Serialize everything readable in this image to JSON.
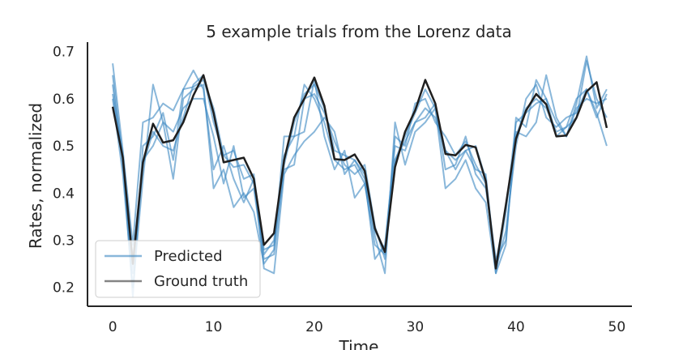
{
  "chart_data": {
    "type": "line",
    "title": "5 example trials from the Lorenz data",
    "xlabel": "Time",
    "ylabel": "Rates, normalized",
    "xlim": [
      -2.5,
      51.5
    ],
    "ylim": [
      0.16,
      0.72
    ],
    "xticks": [
      0,
      10,
      20,
      30,
      40,
      50
    ],
    "yticks": [
      0.2,
      0.3,
      0.4,
      0.5,
      0.6,
      0.7
    ],
    "grid": false,
    "legend_position": "lower-left",
    "legend": [
      "Predicted",
      "Ground truth"
    ],
    "colors": {
      "predicted": "#3a87c2",
      "ground_truth": "#1f1f1f"
    },
    "x": [
      0,
      1,
      2,
      3,
      4,
      5,
      6,
      7,
      8,
      9,
      10,
      11,
      12,
      13,
      14,
      15,
      16,
      17,
      18,
      19,
      20,
      21,
      22,
      23,
      24,
      25,
      26,
      27,
      28,
      29,
      30,
      31,
      32,
      33,
      34,
      35,
      36,
      37,
      38,
      39,
      40,
      41,
      42,
      43,
      44,
      45,
      46,
      47,
      48,
      49
    ],
    "ground_truth": [
      0.583,
      0.475,
      0.25,
      0.465,
      0.547,
      0.507,
      0.512,
      0.55,
      0.607,
      0.65,
      0.57,
      0.465,
      0.47,
      0.475,
      0.43,
      0.29,
      0.315,
      0.47,
      0.56,
      0.6,
      0.645,
      0.585,
      0.472,
      0.47,
      0.482,
      0.447,
      0.325,
      0.275,
      0.455,
      0.53,
      0.575,
      0.64,
      0.59,
      0.483,
      0.48,
      0.502,
      0.497,
      0.425,
      0.24,
      0.375,
      0.515,
      0.575,
      0.61,
      0.588,
      0.52,
      0.522,
      0.56,
      0.615,
      0.635,
      0.538
    ],
    "series": [
      {
        "name": "Predicted",
        "values": [
          0.675,
          0.49,
          0.29,
          0.55,
          0.56,
          0.59,
          0.575,
          0.62,
          0.625,
          0.64,
          0.58,
          0.48,
          0.455,
          0.46,
          0.42,
          0.28,
          0.29,
          0.46,
          0.55,
          0.61,
          0.63,
          0.58,
          0.49,
          0.48,
          0.47,
          0.44,
          0.32,
          0.28,
          0.47,
          0.52,
          0.57,
          0.62,
          0.58,
          0.49,
          0.47,
          0.49,
          0.5,
          0.43,
          0.25,
          0.37,
          0.52,
          0.58,
          0.6,
          0.58,
          0.53,
          0.54,
          0.56,
          0.68,
          0.6,
          0.56
        ]
      },
      {
        "name": "Predicted",
        "values": [
          0.63,
          0.46,
          0.23,
          0.46,
          0.53,
          0.5,
          0.49,
          0.56,
          0.63,
          0.65,
          0.55,
          0.48,
          0.49,
          0.43,
          0.44,
          0.27,
          0.3,
          0.48,
          0.52,
          0.63,
          0.6,
          0.55,
          0.47,
          0.45,
          0.46,
          0.42,
          0.29,
          0.27,
          0.52,
          0.5,
          0.59,
          0.6,
          0.55,
          0.52,
          0.48,
          0.51,
          0.46,
          0.42,
          0.24,
          0.32,
          0.5,
          0.6,
          0.63,
          0.56,
          0.54,
          0.56,
          0.57,
          0.62,
          0.57,
          0.5
        ]
      },
      {
        "name": "Predicted",
        "values": [
          0.6,
          0.44,
          0.2,
          0.43,
          0.63,
          0.55,
          0.43,
          0.6,
          0.62,
          0.63,
          0.41,
          0.45,
          0.37,
          0.4,
          0.36,
          0.25,
          0.28,
          0.52,
          0.52,
          0.53,
          0.64,
          0.52,
          0.45,
          0.49,
          0.39,
          0.42,
          0.31,
          0.23,
          0.55,
          0.46,
          0.53,
          0.55,
          0.58,
          0.41,
          0.43,
          0.47,
          0.41,
          0.38,
          0.23,
          0.29,
          0.56,
          0.54,
          0.64,
          0.6,
          0.55,
          0.52,
          0.58,
          0.6,
          0.59,
          0.6
        ]
      },
      {
        "name": "Predicted",
        "values": [
          0.65,
          0.47,
          0.18,
          0.5,
          0.52,
          0.57,
          0.47,
          0.62,
          0.66,
          0.62,
          0.45,
          0.5,
          0.43,
          0.38,
          0.43,
          0.24,
          0.23,
          0.44,
          0.48,
          0.51,
          0.53,
          0.56,
          0.53,
          0.44,
          0.47,
          0.43,
          0.26,
          0.29,
          0.5,
          0.49,
          0.55,
          0.56,
          0.59,
          0.45,
          0.46,
          0.52,
          0.44,
          0.41,
          0.26,
          0.3,
          0.53,
          0.52,
          0.55,
          0.65,
          0.56,
          0.52,
          0.59,
          0.69,
          0.58,
          0.62
        ]
      },
      {
        "name": "Predicted",
        "values": [
          0.61,
          0.48,
          0.26,
          0.47,
          0.5,
          0.55,
          0.53,
          0.58,
          0.6,
          0.6,
          0.52,
          0.42,
          0.5,
          0.39,
          0.41,
          0.26,
          0.27,
          0.45,
          0.46,
          0.6,
          0.61,
          0.57,
          0.51,
          0.46,
          0.44,
          0.46,
          0.33,
          0.26,
          0.47,
          0.51,
          0.55,
          0.58,
          0.56,
          0.49,
          0.45,
          0.49,
          0.45,
          0.44,
          0.23,
          0.36,
          0.55,
          0.57,
          0.59,
          0.6,
          0.52,
          0.54,
          0.6,
          0.62,
          0.56,
          0.61
        ]
      }
    ]
  }
}
